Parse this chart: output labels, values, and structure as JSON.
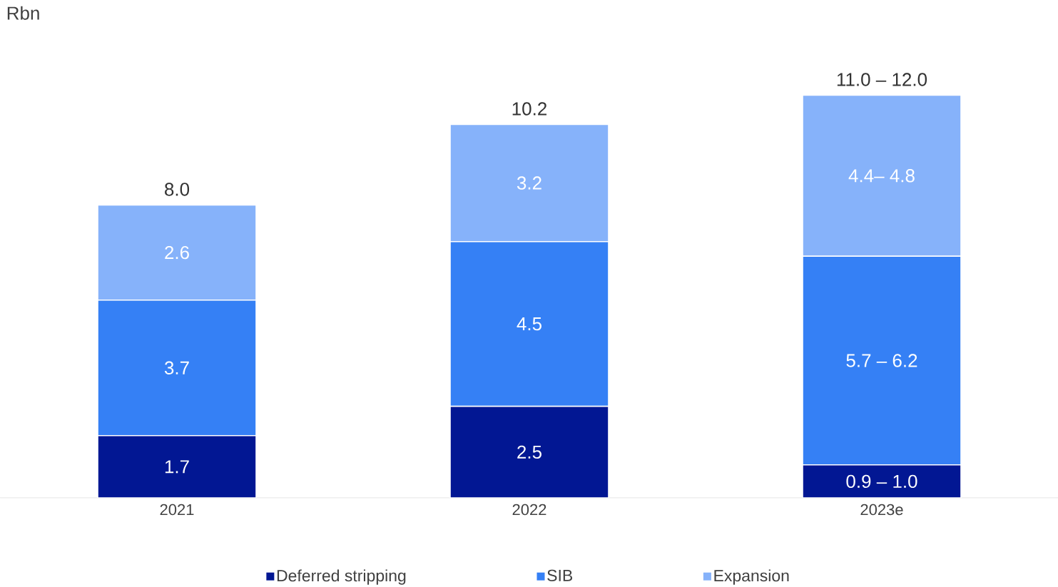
{
  "chart_data": {
    "type": "bar",
    "stacked": true,
    "ylabel": "Rbn",
    "categories": [
      "2021",
      "2022",
      "2023e"
    ],
    "series": [
      {
        "name": "Deferred stripping",
        "color": "#021793",
        "values": [
          1.7,
          2.5,
          0.9
        ],
        "value_labels": [
          "1.7",
          "2.5",
          "0.9 – 1.0"
        ]
      },
      {
        "name": "SIB",
        "color": "#3580f5",
        "values": [
          3.7,
          4.5,
          5.7
        ],
        "value_labels": [
          "3.7",
          "4.5",
          "5.7 – 6.2"
        ]
      },
      {
        "name": "Expansion",
        "color": "#86b2fa",
        "values": [
          2.6,
          3.2,
          4.4
        ],
        "value_labels": [
          "2.6",
          "3.2",
          "4.4– 4.8"
        ]
      }
    ],
    "totals": [
      "8.0",
      "10.2",
      "11.0 – 12.0"
    ],
    "legend": "bottom"
  }
}
